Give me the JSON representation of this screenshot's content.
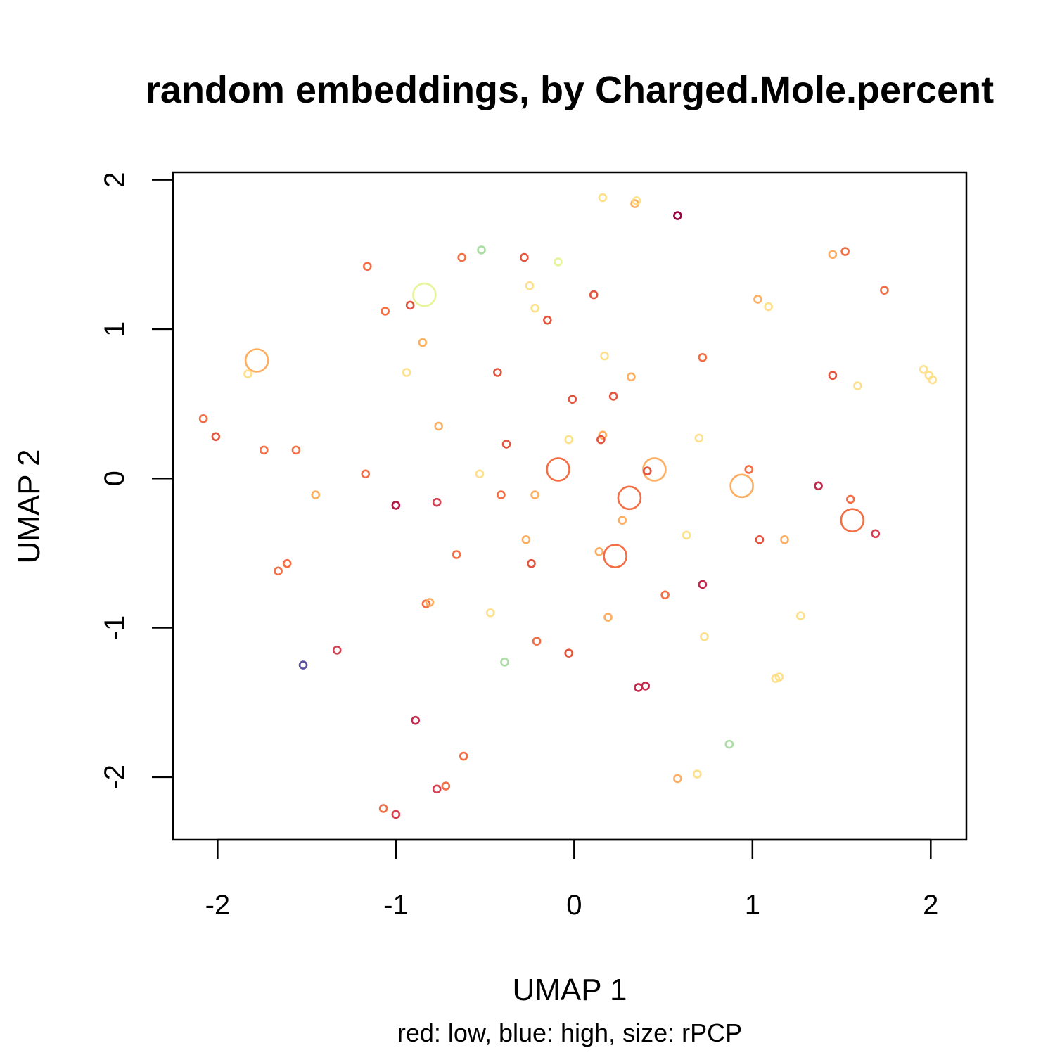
{
  "chart_data": {
    "type": "scatter",
    "title": "random embeddings, by Charged.Mole.percent",
    "xlabel": "UMAP 1",
    "ylabel": "UMAP 2",
    "subtitle": "red: low, blue: high, size: rPCP",
    "xlim": [
      -2.25,
      2.2
    ],
    "ylim": [
      -2.42,
      2.05
    ],
    "xticks": [
      -2,
      -1,
      0,
      1,
      2
    ],
    "yticks": [
      -2,
      -1,
      0,
      1,
      2
    ],
    "grid": false,
    "legend": "none",
    "points": [
      {
        "x": 0.16,
        "y": 1.88,
        "color": "#FEE08B",
        "size": 1
      },
      {
        "x": 0.34,
        "y": 1.84,
        "color": "#FDAE61",
        "size": 1
      },
      {
        "x": 0.35,
        "y": 1.86,
        "color": "#FEE08B",
        "size": 1
      },
      {
        "x": 0.58,
        "y": 1.76,
        "color": "#9E0142",
        "size": 1
      },
      {
        "x": -0.52,
        "y": 1.53,
        "color": "#ABDDA4",
        "size": 1
      },
      {
        "x": -0.63,
        "y": 1.48,
        "color": "#F46D43",
        "size": 1
      },
      {
        "x": -0.28,
        "y": 1.48,
        "color": "#E3553F",
        "size": 1
      },
      {
        "x": -0.09,
        "y": 1.45,
        "color": "#E6F598",
        "size": 1
      },
      {
        "x": 1.45,
        "y": 1.5,
        "color": "#FDAE61",
        "size": 1
      },
      {
        "x": 1.52,
        "y": 1.52,
        "color": "#F46D43",
        "size": 1
      },
      {
        "x": -1.16,
        "y": 1.42,
        "color": "#F46D43",
        "size": 1
      },
      {
        "x": -0.25,
        "y": 1.29,
        "color": "#FEE08B",
        "size": 1
      },
      {
        "x": 1.74,
        "y": 1.26,
        "color": "#F46D43",
        "size": 1
      },
      {
        "x": -0.84,
        "y": 1.23,
        "color": "#E6F598",
        "size": 4
      },
      {
        "x": 0.11,
        "y": 1.23,
        "color": "#E3553F",
        "size": 1
      },
      {
        "x": 1.03,
        "y": 1.2,
        "color": "#FDAE61",
        "size": 1
      },
      {
        "x": 1.09,
        "y": 1.15,
        "color": "#FEE08B",
        "size": 1
      },
      {
        "x": -0.92,
        "y": 1.16,
        "color": "#E3553F",
        "size": 1
      },
      {
        "x": -1.06,
        "y": 1.12,
        "color": "#F46D43",
        "size": 1
      },
      {
        "x": -0.22,
        "y": 1.14,
        "color": "#FEE08B",
        "size": 1
      },
      {
        "x": -0.15,
        "y": 1.06,
        "color": "#E3553F",
        "size": 1
      },
      {
        "x": -0.85,
        "y": 0.91,
        "color": "#FDAE61",
        "size": 1
      },
      {
        "x": -1.78,
        "y": 0.79,
        "color": "#FDAE61",
        "size": 4
      },
      {
        "x": -1.83,
        "y": 0.7,
        "color": "#FEE08B",
        "size": 1
      },
      {
        "x": 0.17,
        "y": 0.82,
        "color": "#FEE08B",
        "size": 1
      },
      {
        "x": 0.72,
        "y": 0.81,
        "color": "#F46D43",
        "size": 1
      },
      {
        "x": -0.94,
        "y": 0.71,
        "color": "#FEE08B",
        "size": 1
      },
      {
        "x": -0.43,
        "y": 0.71,
        "color": "#E3553F",
        "size": 1
      },
      {
        "x": 0.32,
        "y": 0.68,
        "color": "#FDAE61",
        "size": 1
      },
      {
        "x": 1.45,
        "y": 0.69,
        "color": "#E3553F",
        "size": 1
      },
      {
        "x": 1.59,
        "y": 0.62,
        "color": "#FEE08B",
        "size": 1
      },
      {
        "x": 1.96,
        "y": 0.73,
        "color": "#FEE08B",
        "size": 1
      },
      {
        "x": 1.99,
        "y": 0.69,
        "color": "#FEE08B",
        "size": 1
      },
      {
        "x": 2.01,
        "y": 0.66,
        "color": "#FEE08B",
        "size": 1
      },
      {
        "x": -0.01,
        "y": 0.53,
        "color": "#E3553F",
        "size": 1
      },
      {
        "x": 0.22,
        "y": 0.55,
        "color": "#E3553F",
        "size": 1
      },
      {
        "x": -2.08,
        "y": 0.4,
        "color": "#F46D43",
        "size": 1
      },
      {
        "x": -2.01,
        "y": 0.28,
        "color": "#E3553F",
        "size": 1
      },
      {
        "x": -0.76,
        "y": 0.35,
        "color": "#FDAE61",
        "size": 1
      },
      {
        "x": 0.16,
        "y": 0.29,
        "color": "#FDAE61",
        "size": 1
      },
      {
        "x": 0.15,
        "y": 0.26,
        "color": "#E3553F",
        "size": 1
      },
      {
        "x": -0.03,
        "y": 0.26,
        "color": "#FEE08B",
        "size": 1
      },
      {
        "x": 0.7,
        "y": 0.27,
        "color": "#FEE08B",
        "size": 1
      },
      {
        "x": -0.38,
        "y": 0.23,
        "color": "#E3553F",
        "size": 1
      },
      {
        "x": -1.74,
        "y": 0.19,
        "color": "#F46D43",
        "size": 1
      },
      {
        "x": -1.56,
        "y": 0.19,
        "color": "#F46D43",
        "size": 1
      },
      {
        "x": -0.09,
        "y": 0.06,
        "color": "#F46D43",
        "size": 4
      },
      {
        "x": 0.45,
        "y": 0.06,
        "color": "#FDAE61",
        "size": 4
      },
      {
        "x": 0.41,
        "y": 0.05,
        "color": "#E3553F",
        "size": 1
      },
      {
        "x": 0.98,
        "y": 0.06,
        "color": "#F46D43",
        "size": 1
      },
      {
        "x": -1.17,
        "y": 0.03,
        "color": "#F46D43",
        "size": 1
      },
      {
        "x": -0.53,
        "y": 0.03,
        "color": "#FEE08B",
        "size": 1
      },
      {
        "x": 0.94,
        "y": -0.05,
        "color": "#FDAE61",
        "size": 4
      },
      {
        "x": 1.37,
        "y": -0.05,
        "color": "#C2294A",
        "size": 1
      },
      {
        "x": -1.45,
        "y": -0.11,
        "color": "#FDAE61",
        "size": 1
      },
      {
        "x": -0.41,
        "y": -0.11,
        "color": "#F46D43",
        "size": 1
      },
      {
        "x": -0.22,
        "y": -0.11,
        "color": "#FDAE61",
        "size": 1
      },
      {
        "x": 0.31,
        "y": -0.13,
        "color": "#F46D43",
        "size": 4
      },
      {
        "x": -1.0,
        "y": -0.18,
        "color": "#B2183F",
        "size": 1
      },
      {
        "x": -0.77,
        "y": -0.16,
        "color": "#D53E4F",
        "size": 1
      },
      {
        "x": 1.55,
        "y": -0.14,
        "color": "#F46D43",
        "size": 1
      },
      {
        "x": 1.56,
        "y": -0.28,
        "color": "#F46D43",
        "size": 4
      },
      {
        "x": 0.27,
        "y": -0.28,
        "color": "#FDAE61",
        "size": 1
      },
      {
        "x": 1.69,
        "y": -0.37,
        "color": "#D53E4F",
        "size": 1
      },
      {
        "x": 0.63,
        "y": -0.38,
        "color": "#FEE08B",
        "size": 1
      },
      {
        "x": -0.27,
        "y": -0.41,
        "color": "#FDAE61",
        "size": 1
      },
      {
        "x": 1.04,
        "y": -0.41,
        "color": "#E3553F",
        "size": 1
      },
      {
        "x": 1.18,
        "y": -0.41,
        "color": "#FDAE61",
        "size": 1
      },
      {
        "x": 0.14,
        "y": -0.49,
        "color": "#FDAE61",
        "size": 1
      },
      {
        "x": 0.23,
        "y": -0.52,
        "color": "#F46D43",
        "size": 4
      },
      {
        "x": -0.66,
        "y": -0.51,
        "color": "#F46D43",
        "size": 1
      },
      {
        "x": -0.24,
        "y": -0.57,
        "color": "#E3553F",
        "size": 1
      },
      {
        "x": -1.61,
        "y": -0.57,
        "color": "#F46D43",
        "size": 1
      },
      {
        "x": -1.66,
        "y": -0.62,
        "color": "#F46D43",
        "size": 1
      },
      {
        "x": 0.72,
        "y": -0.71,
        "color": "#C2294A",
        "size": 1
      },
      {
        "x": 0.51,
        "y": -0.78,
        "color": "#F46D43",
        "size": 1
      },
      {
        "x": -0.83,
        "y": -0.84,
        "color": "#F46D43",
        "size": 1
      },
      {
        "x": -0.81,
        "y": -0.83,
        "color": "#FDAE61",
        "size": 1
      },
      {
        "x": -0.47,
        "y": -0.9,
        "color": "#FEE08B",
        "size": 1
      },
      {
        "x": 0.19,
        "y": -0.93,
        "color": "#FDAE61",
        "size": 1
      },
      {
        "x": 1.27,
        "y": -0.92,
        "color": "#FEE08B",
        "size": 1
      },
      {
        "x": 0.73,
        "y": -1.06,
        "color": "#FEE08B",
        "size": 1
      },
      {
        "x": -0.21,
        "y": -1.09,
        "color": "#F46D43",
        "size": 1
      },
      {
        "x": -1.33,
        "y": -1.15,
        "color": "#D53E4F",
        "size": 1
      },
      {
        "x": -0.03,
        "y": -1.17,
        "color": "#E3553F",
        "size": 1
      },
      {
        "x": -1.52,
        "y": -1.25,
        "color": "#5E4FA2",
        "size": 1
      },
      {
        "x": -0.39,
        "y": -1.23,
        "color": "#ABDDA4",
        "size": 1
      },
      {
        "x": 1.13,
        "y": -1.34,
        "color": "#FEE08B",
        "size": 1
      },
      {
        "x": 1.15,
        "y": -1.33,
        "color": "#FEE08B",
        "size": 1
      },
      {
        "x": 0.36,
        "y": -1.4,
        "color": "#C2294A",
        "size": 1
      },
      {
        "x": 0.4,
        "y": -1.39,
        "color": "#C2294A",
        "size": 1
      },
      {
        "x": -0.89,
        "y": -1.62,
        "color": "#C2294A",
        "size": 1
      },
      {
        "x": 0.87,
        "y": -1.78,
        "color": "#ABDDA4",
        "size": 1
      },
      {
        "x": -0.62,
        "y": -1.86,
        "color": "#F46D43",
        "size": 1
      },
      {
        "x": 0.58,
        "y": -2.01,
        "color": "#FDAE61",
        "size": 1
      },
      {
        "x": 0.69,
        "y": -1.98,
        "color": "#FEE08B",
        "size": 1
      },
      {
        "x": -0.72,
        "y": -2.06,
        "color": "#F46D43",
        "size": 1
      },
      {
        "x": -0.77,
        "y": -2.08,
        "color": "#D53E4F",
        "size": 1
      },
      {
        "x": -1.07,
        "y": -2.21,
        "color": "#F46D43",
        "size": 1
      },
      {
        "x": -1.0,
        "y": -2.25,
        "color": "#D53E4F",
        "size": 1
      }
    ]
  }
}
